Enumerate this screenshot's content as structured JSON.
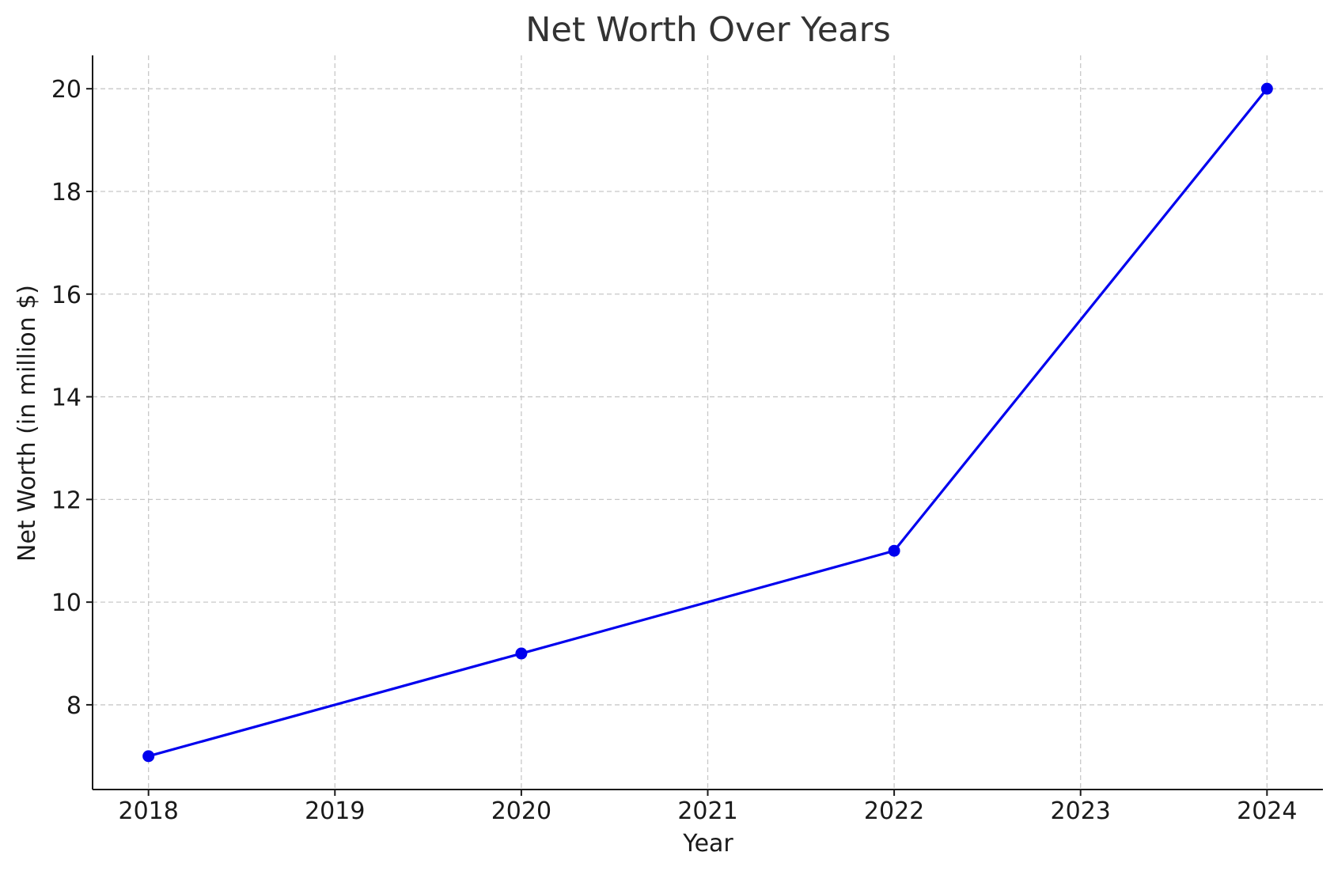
{
  "chart_data": {
    "type": "line",
    "title": "Net Worth Over Years",
    "xlabel": "Year",
    "ylabel": "Net Worth (in million $)",
    "x_ticks": [
      "2018",
      "2019",
      "2020",
      "2021",
      "2022",
      "2023",
      "2024"
    ],
    "y_ticks": [
      "8",
      "10",
      "12",
      "14",
      "16",
      "18",
      "20"
    ],
    "xlim": [
      2017.7,
      2024.3
    ],
    "ylim": [
      6.35,
      20.65
    ],
    "grid": true,
    "series": [
      {
        "x": [
          2018,
          2020,
          2022,
          2024
        ],
        "y": [
          7,
          9,
          11,
          20
        ],
        "color": "#0000ee",
        "marker": "circle"
      }
    ]
  }
}
